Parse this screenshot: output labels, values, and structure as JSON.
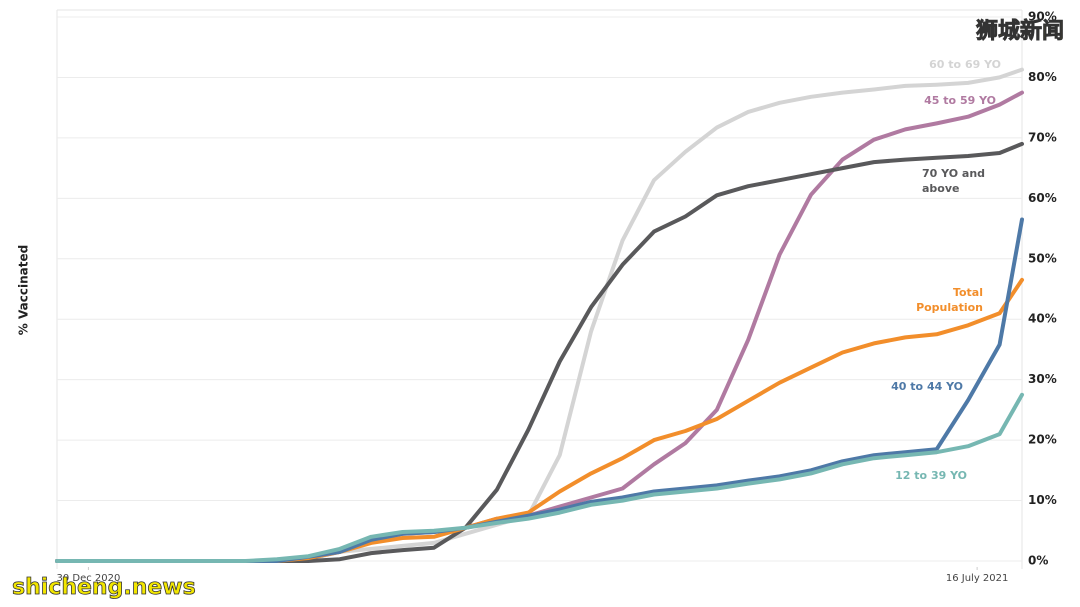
{
  "chart_data": {
    "type": "line",
    "y_label": "% Vaccinated",
    "x": [
      "2020-12-23",
      "2021-01-13",
      "2021-01-27",
      "2021-02-03",
      "2021-02-10",
      "2021-02-17",
      "2021-02-24",
      "2021-03-03",
      "2021-03-10",
      "2021-03-17",
      "2021-03-24",
      "2021-03-31",
      "2021-04-07",
      "2021-04-14",
      "2021-04-21",
      "2021-04-28",
      "2021-05-05",
      "2021-05-12",
      "2021-05-19",
      "2021-05-26",
      "2021-06-02",
      "2021-06-09",
      "2021-06-16",
      "2021-06-23",
      "2021-06-30",
      "2021-07-07",
      "2021-07-14",
      "2021-07-21",
      "2021-07-26"
    ],
    "xlim": [
      "2020-12-23",
      "2021-07-26"
    ],
    "xticks": [
      {
        "value": "2020-12-30",
        "label": "30 Dec 2020"
      },
      {
        "value": "2021-07-16",
        "label": "16 July 2021"
      }
    ],
    "ylim": [
      0,
      90
    ],
    "yticks": [
      {
        "value": 0,
        "label": "0%"
      },
      {
        "value": 10,
        "label": "10%"
      },
      {
        "value": 20,
        "label": "20%"
      },
      {
        "value": 30,
        "label": "30%"
      },
      {
        "value": 40,
        "label": "40%"
      },
      {
        "value": 50,
        "label": "50%"
      },
      {
        "value": 60,
        "label": "60%"
      },
      {
        "value": 70,
        "label": "70%"
      },
      {
        "value": 80,
        "label": "80%"
      },
      {
        "value": 90,
        "label": "90%"
      }
    ],
    "grid": true,
    "series": [
      {
        "name": [
          "60 to 69 YO"
        ],
        "color": "#d4d4d4",
        "values": [
          0,
          0,
          0,
          0,
          0,
          0.3,
          1.5,
          2,
          2.5,
          3,
          4.5,
          6,
          7.5,
          17.5,
          38,
          53,
          63,
          67.7,
          71.7,
          74.3,
          75.8,
          76.8,
          77.5,
          78,
          78.6,
          78.8,
          79.1,
          80,
          81.3
        ]
      },
      {
        "name": [
          "45 to 59 YO"
        ],
        "color": "#b07aa1",
        "values": [
          0,
          0,
          0,
          0,
          0,
          0.5,
          1.5,
          3.5,
          4.5,
          4.8,
          5.5,
          7,
          7.5,
          9,
          10.5,
          12,
          16,
          19.5,
          25,
          36.6,
          50.7,
          60.6,
          66.4,
          69.7,
          71.4,
          72.4,
          73.5,
          75.5,
          77.5
        ]
      },
      {
        "name": [
          "70 YO and",
          "above"
        ],
        "color": "#59595b",
        "values": [
          0,
          0,
          0,
          0,
          0,
          0,
          0.3,
          1.3,
          1.8,
          2.2,
          5.5,
          11.8,
          21.7,
          33,
          42,
          49,
          54.5,
          57,
          60.5,
          62,
          63,
          64,
          65,
          66,
          66.4,
          66.7,
          67,
          67.5,
          69
        ]
      },
      {
        "name": [
          "Total",
          "Population"
        ],
        "color": "#f28e2b",
        "values": [
          0,
          0,
          0,
          0,
          0,
          0.5,
          1.5,
          3,
          3.8,
          4,
          5.5,
          7,
          8,
          11.5,
          14.5,
          17,
          20,
          21.5,
          23.5,
          26.5,
          29.5,
          32,
          34.5,
          36,
          37,
          37.5,
          39,
          41,
          46.5
        ]
      },
      {
        "name": [
          "40 to 44 YO"
        ],
        "color": "#4e79a7",
        "values": [
          0,
          0,
          0,
          0,
          0,
          0.7,
          1.5,
          3.5,
          4.5,
          4.8,
          5.5,
          6.5,
          7.5,
          8.5,
          9.8,
          10.5,
          11.5,
          12,
          12.5,
          13.3,
          14,
          15,
          16.5,
          17.5,
          18,
          18.5,
          26.6,
          35.8,
          56.5
        ]
      },
      {
        "name": [
          "12 to 39 YO"
        ],
        "color": "#76b7b2",
        "values": [
          0,
          0,
          0,
          0,
          0.3,
          0.8,
          2,
          4,
          4.8,
          5,
          5.5,
          6.3,
          7,
          8,
          9.3,
          10,
          11,
          11.5,
          12,
          12.8,
          13.5,
          14.5,
          16,
          17,
          17.5,
          18,
          19,
          21,
          27.5
        ]
      }
    ],
    "watermarks": [
      "狮城新闻",
      "shicheng.news"
    ]
  }
}
